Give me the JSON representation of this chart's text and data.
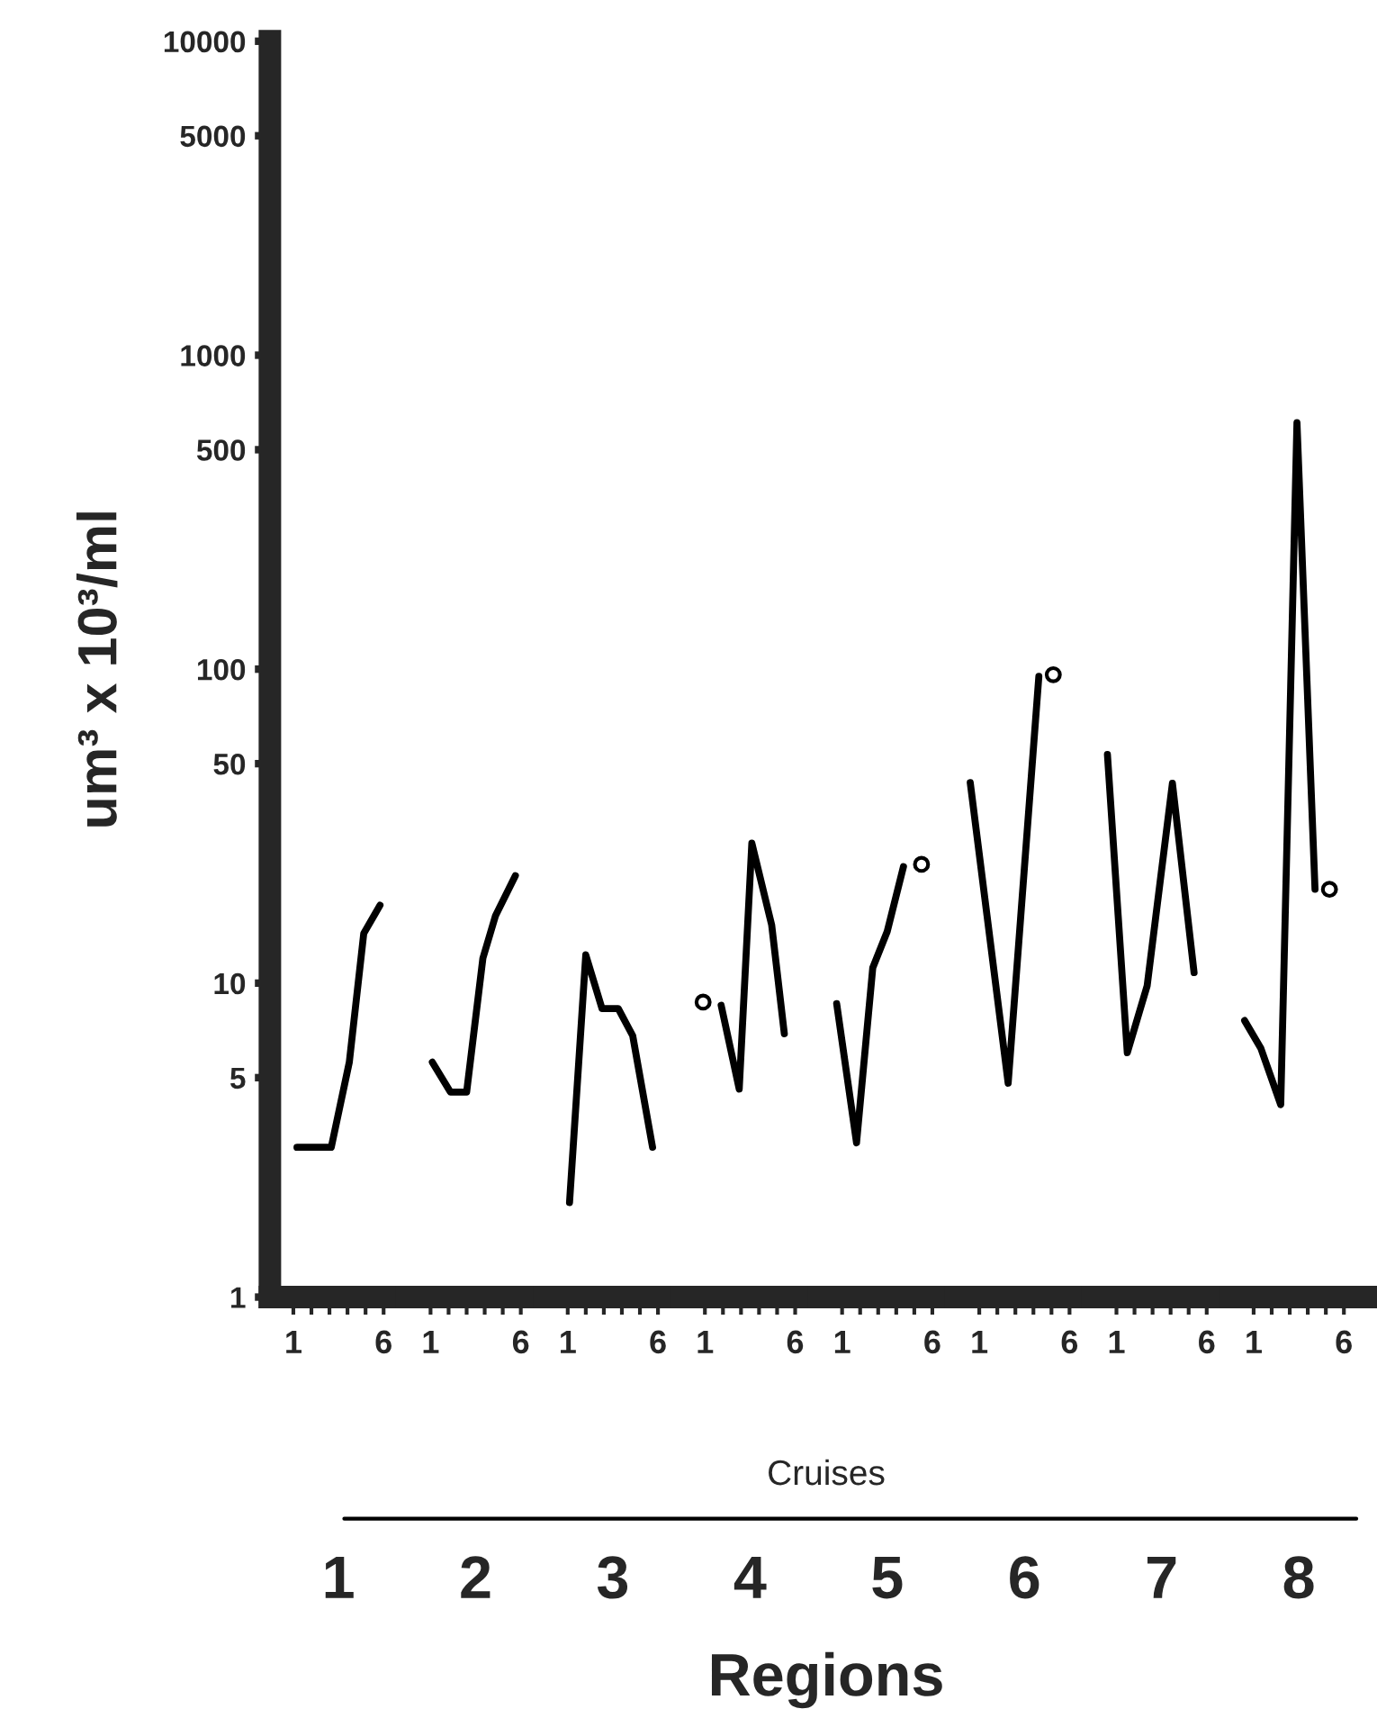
{
  "chart_data": [
    {
      "type": "line",
      "xlabel": "1",
      "ylabel": "um³ x 10³/ml",
      "log": "y",
      "ylim": [
        1,
        10000
      ],
      "yticks": [
        1,
        5,
        10,
        50,
        100,
        500,
        1000,
        5000,
        10000
      ],
      "xlim": [
        -0.3,
        7.3
      ],
      "xticks": [
        1,
        {
          "value": 2,
          "label": null
        },
        {
          "value": 3,
          "label": null
        },
        {
          "value": 4,
          "label": null
        },
        {
          "value": 5,
          "label": null
        },
        6
      ],
      "annotations": [
        "Cruises",
        "Regions"
      ],
      "series": [
        {
          "color": "#000000",
          "x": [
            1.2,
            2.2,
            3.1,
            4.1,
            4.9,
            5.8
          ],
          "values": [
            3.0,
            3.0,
            3.0,
            5.6,
            14.4,
            17.7
          ]
        }
      ]
    },
    {
      "type": "line",
      "xlabel": "2",
      "log": "y",
      "ylim": [
        1,
        10000
      ],
      "tick_labels": "x",
      "xlim": [
        -0.3,
        7.3
      ],
      "xticks": [
        1,
        {
          "value": 2,
          "label": null
        },
        {
          "value": 3,
          "label": null
        },
        {
          "value": 4,
          "label": null
        },
        {
          "value": 5,
          "label": null
        },
        6
      ],
      "series": [
        {
          "color": "#000000",
          "x": [
            1.1,
            2.1,
            3.0,
            3.9,
            4.6,
            5.7
          ],
          "values": [
            5.6,
            4.5,
            4.5,
            12.0,
            16.4,
            22.0
          ]
        }
      ]
    },
    {
      "type": "line",
      "xlabel": "3",
      "log": "y",
      "ylim": [
        1,
        10000
      ],
      "tick_labels": "x",
      "xlim": [
        -0.3,
        7.3
      ],
      "xticks": [
        1,
        {
          "value": 2,
          "label": null
        },
        {
          "value": 3,
          "label": null
        },
        {
          "value": 4,
          "label": null
        },
        {
          "value": 5,
          "label": null
        },
        6
      ],
      "series": [
        {
          "color": "#000000",
          "x": [
            1.1,
            2.0,
            2.9,
            3.8,
            4.6,
            5.7
          ],
          "values": [
            2.0,
            12.3,
            8.3,
            8.3,
            6.8,
            3.0
          ]
        }
      ]
    },
    {
      "type": "line",
      "xlabel": "4",
      "log": "y",
      "ylim": [
        1,
        10000
      ],
      "tick_labels": "x",
      "xlim": [
        -0.3,
        7.3
      ],
      "xticks": [
        1,
        {
          "value": 2,
          "label": null
        },
        {
          "value": 3,
          "label": null
        },
        {
          "value": 4,
          "label": null
        },
        {
          "value": 5,
          "label": null
        },
        6
      ],
      "series": [
        {
          "color": "#000000",
          "x": [
            1.9,
            2.9,
            3.6,
            4.7,
            5.4
          ],
          "values": [
            8.5,
            4.6,
            27.9,
            15.3,
            6.9
          ]
        },
        {
          "type": "scatter",
          "marker": "circle",
          "color": "#000000",
          "x": [
            0.9
          ],
          "values": [
            8.7
          ]
        }
      ]
    },
    {
      "type": "line",
      "xlabel": "5",
      "log": "y",
      "ylim": [
        1,
        10000
      ],
      "tick_labels": "x",
      "xlim": [
        -0.3,
        7.3
      ],
      "xticks": [
        1,
        {
          "value": 2,
          "label": null
        },
        {
          "value": 3,
          "label": null
        },
        {
          "value": 4,
          "label": null
        },
        {
          "value": 5,
          "label": null
        },
        6
      ],
      "series": [
        {
          "color": "#000000",
          "x": [
            0.7,
            1.8,
            2.7,
            3.5,
            4.4
          ],
          "values": [
            8.6,
            3.1,
            11.2,
            14.6,
            23.5
          ]
        },
        {
          "type": "scatter",
          "marker": "circle",
          "color": "#000000",
          "x": [
            5.4
          ],
          "values": [
            23.9
          ]
        }
      ]
    },
    {
      "type": "line",
      "xlabel": "6",
      "log": "y",
      "ylim": [
        1,
        10000
      ],
      "tick_labels": "x",
      "xlim": [
        -0.3,
        7.3
      ],
      "xticks": [
        1,
        {
          "value": 2,
          "label": null
        },
        {
          "value": 3,
          "label": null
        },
        {
          "value": 4,
          "label": null
        },
        {
          "value": 5,
          "label": null
        },
        6
      ],
      "series": [
        {
          "color": "#000000",
          "x": [
            0.5,
            2.6,
            4.3
          ],
          "values": [
            43.5,
            4.8,
            94.8
          ]
        },
        {
          "type": "scatter",
          "marker": "circle",
          "color": "#000000",
          "x": [
            5.1
          ],
          "values": [
            96
          ]
        }
      ]
    },
    {
      "type": "line",
      "xlabel": "7",
      "log": "y",
      "ylim": [
        1,
        10000
      ],
      "tick_labels": "x",
      "xlim": [
        -0.3,
        7.3
      ],
      "xticks": [
        1,
        {
          "value": 2,
          "label": null
        },
        {
          "value": 3,
          "label": null
        },
        {
          "value": 4,
          "label": null
        },
        {
          "value": 5,
          "label": null
        },
        6
      ],
      "series": [
        {
          "color": "#000000",
          "x": [
            0.5,
            1.6,
            2.7,
            4.1,
            5.3
          ],
          "values": [
            53.5,
            6.0,
            9.8,
            43.3,
            10.8
          ]
        }
      ]
    },
    {
      "type": "line",
      "xlabel": "8",
      "log": "y",
      "ylim": [
        1,
        10000
      ],
      "tick_labels": "x",
      "xlim": [
        -0.3,
        7.3
      ],
      "xticks": [
        1,
        {
          "value": 2,
          "label": null
        },
        {
          "value": 3,
          "label": null
        },
        {
          "value": 4,
          "label": null
        },
        {
          "value": 5,
          "label": null
        },
        6
      ],
      "series": [
        {
          "color": "#000000",
          "x": [
            0.5,
            1.4,
            2.5,
            3.4,
            4.4
          ],
          "values": [
            7.6,
            6.2,
            4.1,
            610,
            19.9
          ]
        },
        {
          "type": "scatter",
          "marker": "circle",
          "color": "#000000",
          "x": [
            5.2
          ],
          "values": [
            19.9
          ]
        }
      ]
    }
  ]
}
